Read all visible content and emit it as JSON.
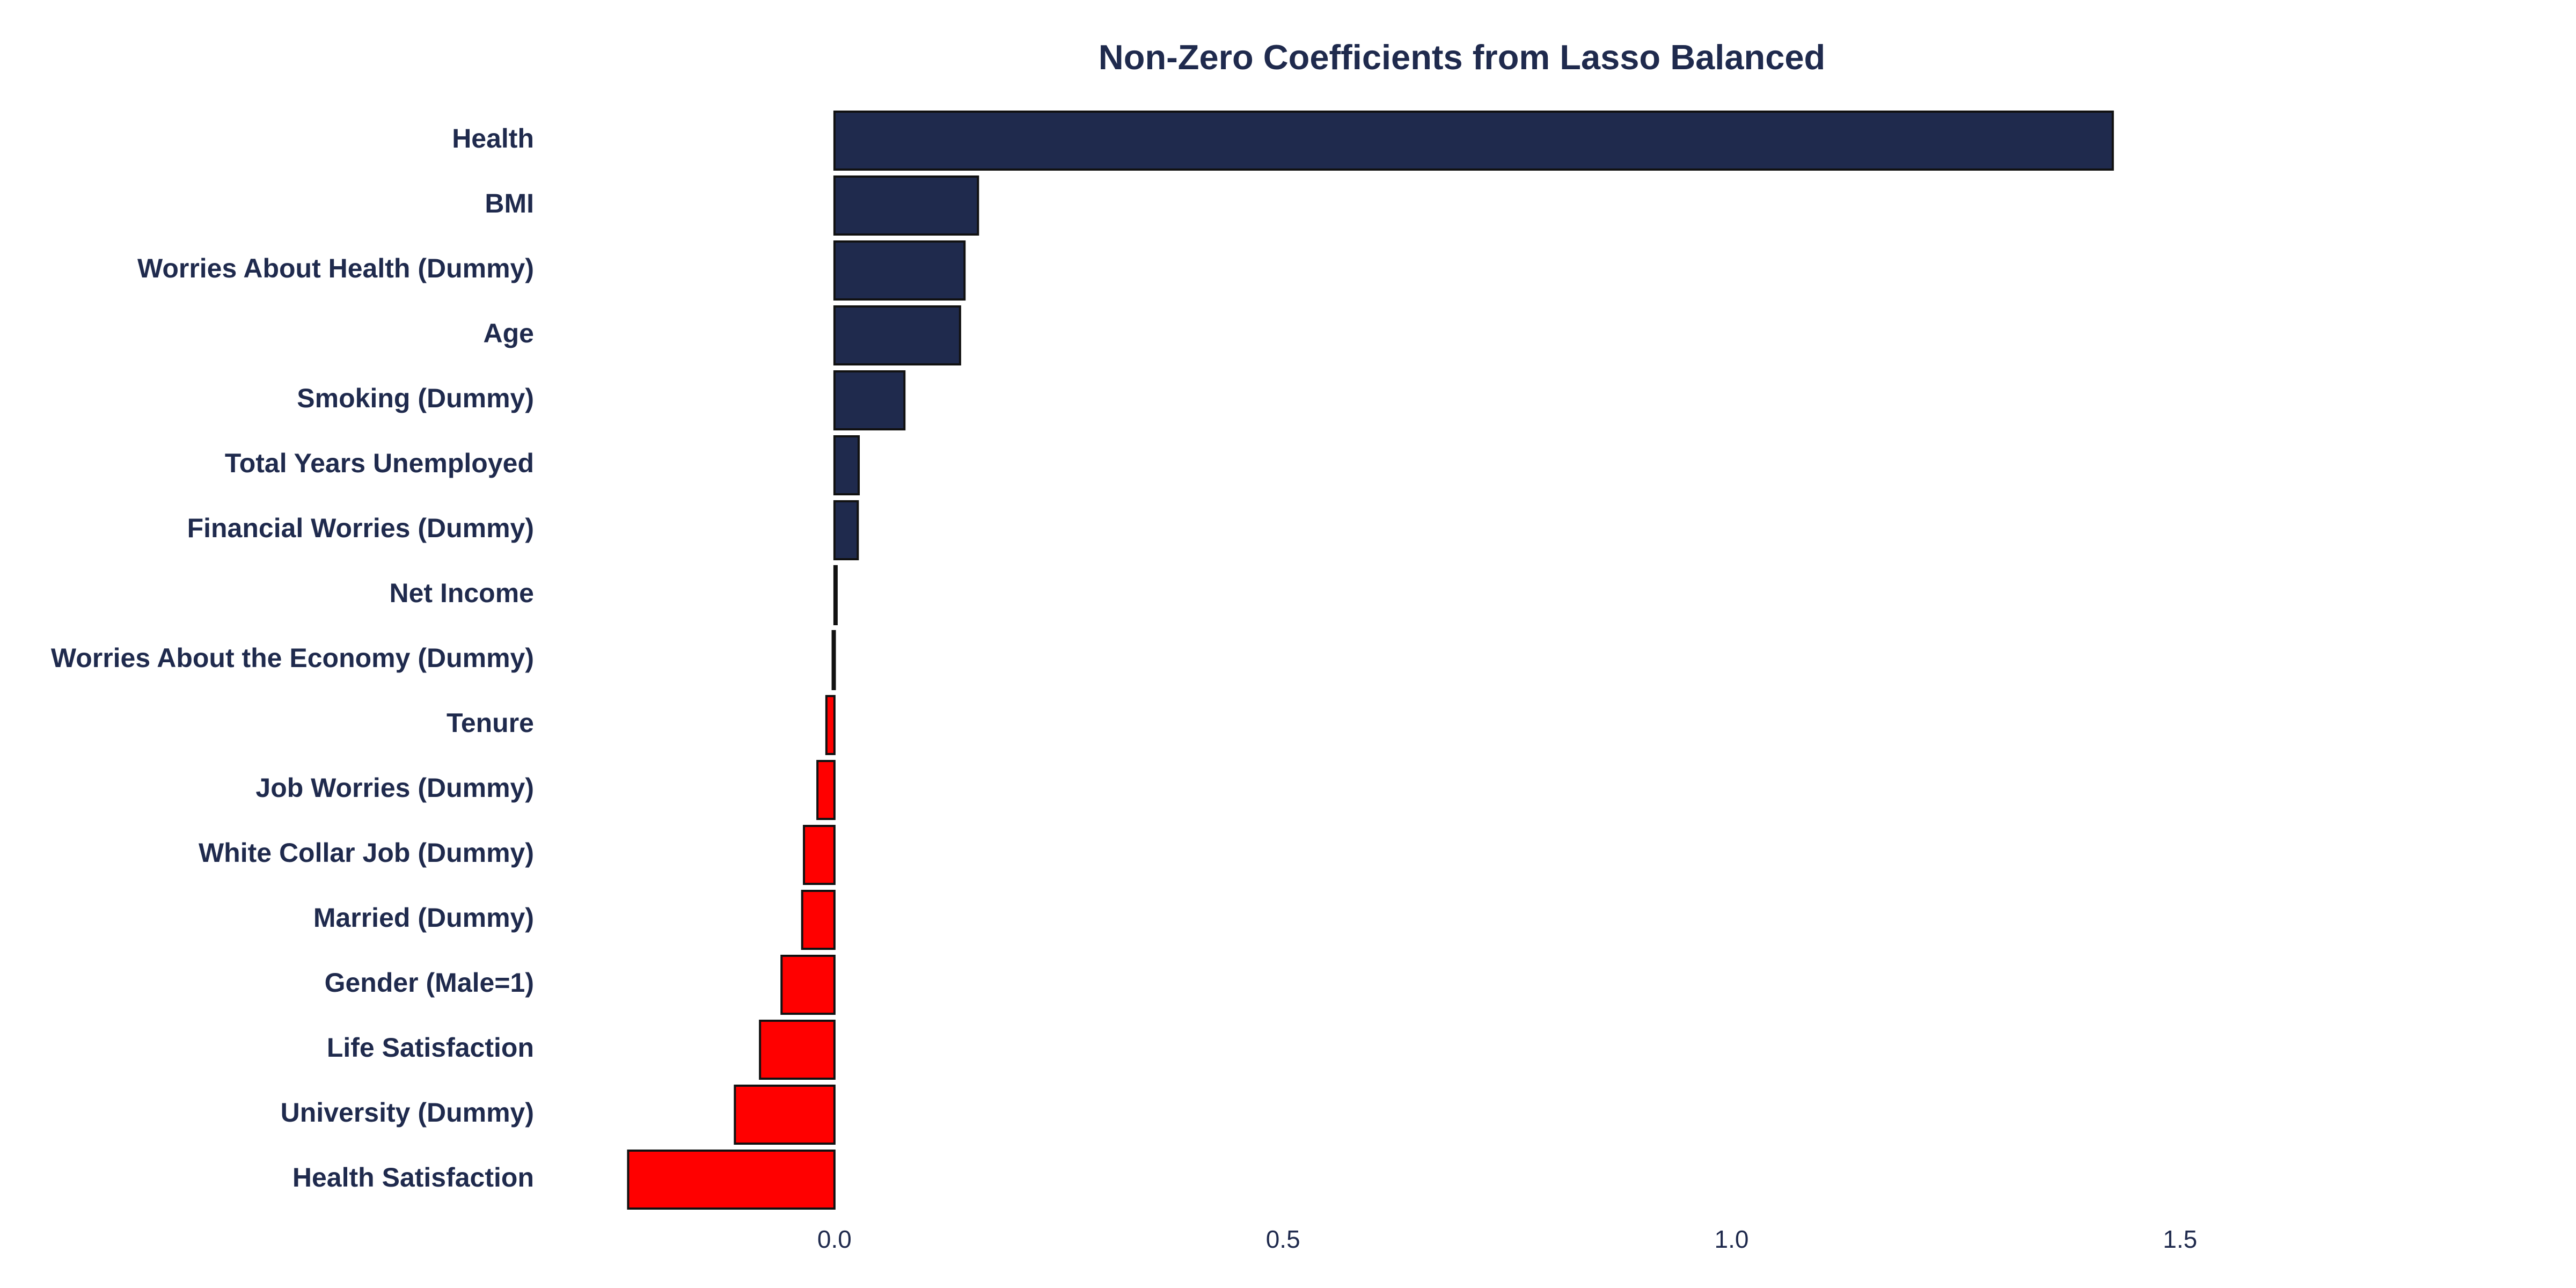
{
  "colors": {
    "positive": "#1f2a4d",
    "negative": "#ff0000",
    "edge": "#111111",
    "text": "#1f2a4d",
    "background": "#ffffff"
  },
  "chart_data": {
    "type": "bar",
    "orientation": "horizontal",
    "title": "Non-Zero Coefficients from Lasso Balanced",
    "xlabel": "",
    "ylabel": "",
    "grid": false,
    "legend": "none",
    "xlim": [
      -0.32,
      1.72
    ],
    "xticks": [
      0.0,
      0.5,
      1.0,
      1.5
    ],
    "xtick_labels": [
      "0.0",
      "0.5",
      "1.0",
      "1.5"
    ],
    "categories": [
      "Health",
      "BMI",
      "Worries About Health (Dummy)",
      "Age",
      "Smoking (Dummy)",
      "Total Years Unemployed",
      "Financial Worries (Dummy)",
      "Net Income",
      "Worries About the Economy (Dummy)",
      "Tenure",
      "Job Worries (Dummy)",
      "White Collar Job (Dummy)",
      "Married (Dummy)",
      "Gender (Male=1)",
      "Life Satisfaction",
      "University (Dummy)",
      "Health Satisfaction"
    ],
    "values": [
      1.425,
      0.16,
      0.145,
      0.14,
      0.078,
      0.027,
      0.026,
      0.002,
      -0.002,
      -0.009,
      -0.019,
      -0.034,
      -0.036,
      -0.059,
      -0.083,
      -0.111,
      -0.23
    ]
  }
}
